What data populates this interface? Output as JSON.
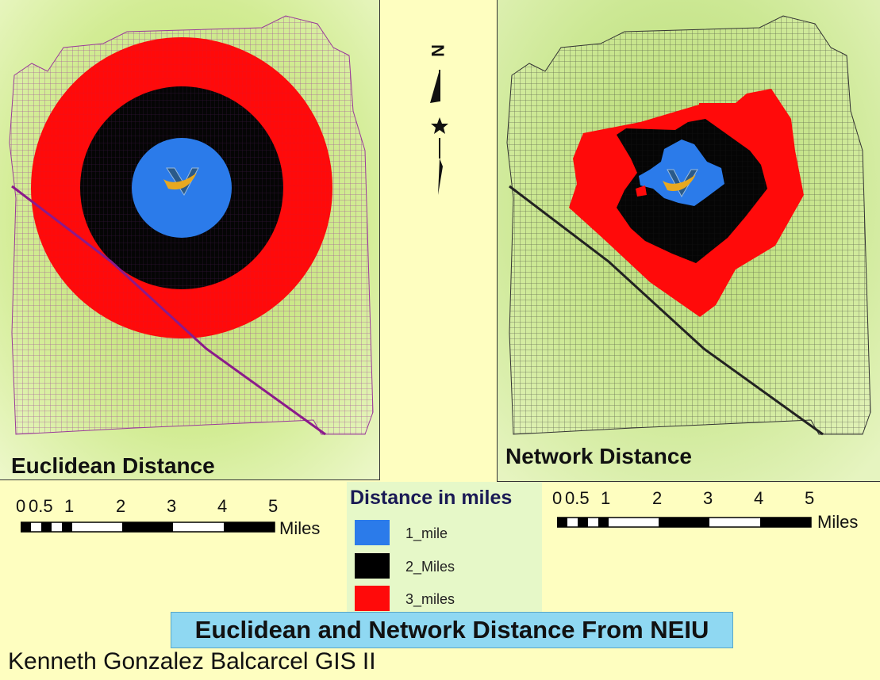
{
  "maps": {
    "left": {
      "title": "Euclidean Distance",
      "road_color": "#8b1a8b"
    },
    "right": {
      "title": "Network Distance",
      "road_color": "#333333"
    }
  },
  "scale_bar": {
    "labels": [
      "0",
      "0.5",
      "1",
      "2",
      "3",
      "4",
      "5"
    ],
    "unit": "Miles"
  },
  "legend": {
    "title": "Distance in miles",
    "items": [
      {
        "label": "1_mile",
        "color": "#2b7bea"
      },
      {
        "label": "2_Miles",
        "color": "#000000"
      },
      {
        "label": "3_miles",
        "color": "#ff0a0a"
      }
    ]
  },
  "north_arrow": {
    "letter": "N"
  },
  "title": "Euclidean and Network Distance From NEIU",
  "author": "Kenneth Gonzalez Balcarcel GIS II",
  "colors": {
    "background": "#fefec0",
    "map_background": "#d8f09a",
    "title_bg": "#8fd8f2"
  }
}
